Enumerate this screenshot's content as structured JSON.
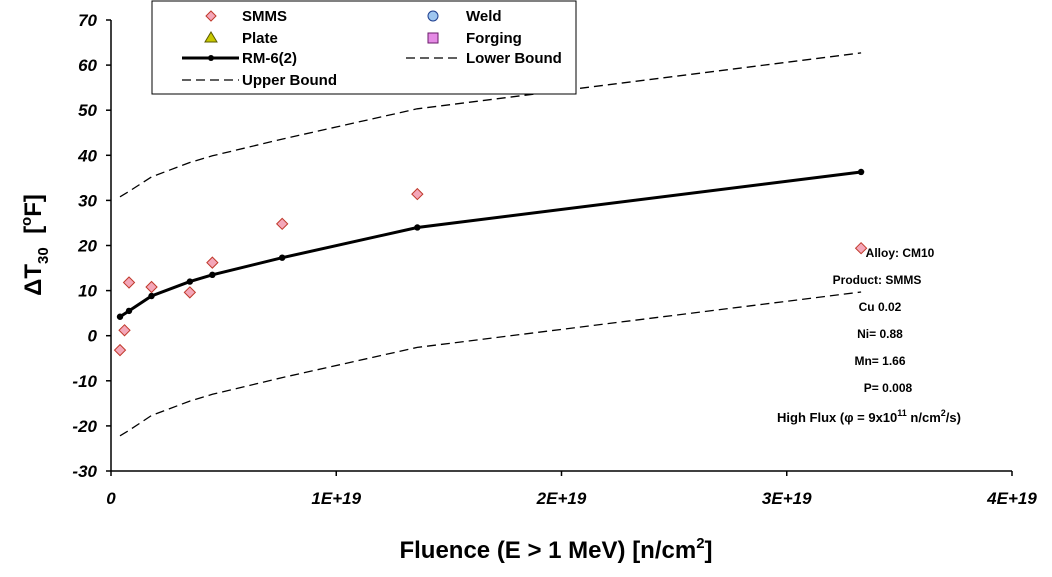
{
  "chart_data": {
    "type": "scatter",
    "xlabel": "Fluence  (E > 1 MeV)  [n/cm",
    "xlabel_sup": "2",
    "xlabel_end": "]",
    "ylabel_delta": "Δ",
    "ylabel_main": "T",
    "ylabel_sub": "30",
    "ylabel_unit_open": "  [",
    "ylabel_unit_sup": "o",
    "ylabel_unit_close": "F]",
    "xlim": [
      0,
      4e+19
    ],
    "ylim": [
      -30,
      70
    ],
    "x_ticks": [
      0,
      1e+19,
      2e+19,
      3e+19,
      4e+19
    ],
    "x_tick_labels": [
      "0",
      "1E+19",
      "2E+19",
      "3E+19",
      "4E+19"
    ],
    "y_ticks": [
      -30,
      -20,
      -10,
      0,
      10,
      20,
      30,
      40,
      50,
      60,
      70
    ],
    "y_tick_labels": [
      "-30",
      "-20",
      "-10",
      "0",
      "10",
      "20",
      "30",
      "40",
      "50",
      "60",
      "70"
    ],
    "grid": false,
    "legend_position": "top-left",
    "legend": [
      {
        "label": "SMMS",
        "marker": "diamond",
        "color": "#f4a7b9"
      },
      {
        "label": "Weld",
        "marker": "circle",
        "color": "#9ec6f0"
      },
      {
        "label": "Plate",
        "marker": "triangle",
        "color": "#c8c800"
      },
      {
        "label": "Forging",
        "marker": "square",
        "color": "#e58be5"
      },
      {
        "label": "RM-6(2)",
        "marker": "solid-line-dot",
        "color": "#000000"
      },
      {
        "label": "Lower Bound",
        "marker": "dashed-line",
        "color": "#000000"
      },
      {
        "label": "Upper Bound",
        "marker": "dashed-line",
        "color": "#000000"
      }
    ],
    "series": [
      {
        "name": "SMMS",
        "kind": "points",
        "points": [
          {
            "x": 4e+17,
            "y": -3.2
          },
          {
            "x": 6e+17,
            "y": 1.2
          },
          {
            "x": 8e+17,
            "y": 11.8
          },
          {
            "x": 1.8e+18,
            "y": 10.8
          },
          {
            "x": 3.5e+18,
            "y": 9.6
          },
          {
            "x": 4.5e+18,
            "y": 16.2
          },
          {
            "x": 7.6e+18,
            "y": 24.8
          },
          {
            "x": 1.36e+19,
            "y": 31.4
          },
          {
            "x": 3.33e+19,
            "y": 19.4
          }
        ]
      },
      {
        "name": "RM-6(2)",
        "kind": "line",
        "points": [
          {
            "x": 4e+17,
            "y": 4.2
          },
          {
            "x": 8e+17,
            "y": 5.5
          },
          {
            "x": 1.8e+18,
            "y": 8.8
          },
          {
            "x": 3.5e+18,
            "y": 12.0
          },
          {
            "x": 4.5e+18,
            "y": 13.5
          },
          {
            "x": 7.6e+18,
            "y": 17.3
          },
          {
            "x": 1.36e+19,
            "y": 24.0
          },
          {
            "x": 3.33e+19,
            "y": 36.3
          }
        ]
      },
      {
        "name": "Upper Bound",
        "kind": "dashed",
        "points": [
          {
            "x": 4e+17,
            "y": 30.8
          },
          {
            "x": 8e+17,
            "y": 32.0
          },
          {
            "x": 1.8e+18,
            "y": 35.2
          },
          {
            "x": 3.5e+18,
            "y": 38.4
          },
          {
            "x": 4.5e+18,
            "y": 39.9
          },
          {
            "x": 7.6e+18,
            "y": 43.6
          },
          {
            "x": 1.36e+19,
            "y": 50.3
          },
          {
            "x": 3.33e+19,
            "y": 62.7
          }
        ]
      },
      {
        "name": "Lower Bound",
        "kind": "dashed",
        "points": [
          {
            "x": 4e+17,
            "y": -22.2
          },
          {
            "x": 8e+17,
            "y": -21.0
          },
          {
            "x": 1.8e+18,
            "y": -17.7
          },
          {
            "x": 3.5e+18,
            "y": -14.5
          },
          {
            "x": 4.5e+18,
            "y": -13.0
          },
          {
            "x": 7.6e+18,
            "y": -9.3
          },
          {
            "x": 1.36e+19,
            "y": -2.6
          },
          {
            "x": 3.33e+19,
            "y": 9.7
          }
        ]
      }
    ],
    "annotations": {
      "alloy": {
        "label": "Alloy: ",
        "value": "CM10"
      },
      "product": {
        "label": "Product: ",
        "value": "SMMS"
      },
      "cu": {
        "label": "Cu",
        "value": "0.02"
      },
      "ni": {
        "label": "Ni=",
        "value": "0.88"
      },
      "mn": {
        "label": "Mn=",
        "value": "1.66"
      },
      "p": {
        "label": "P=",
        "value": "0.008"
      },
      "flux_prefix": "High Flux (",
      "flux_phi": "φ",
      "flux_mid": " = 9x10",
      "flux_exp": "11",
      "flux_unit": " n/cm",
      "flux_unit_exp": "2",
      "flux_end": "/s)"
    }
  }
}
